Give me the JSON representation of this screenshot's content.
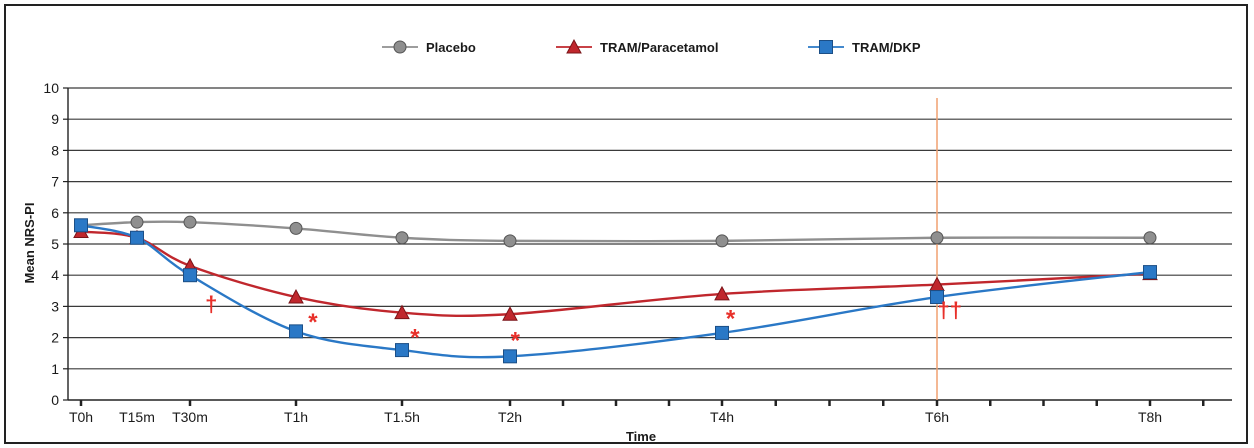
{
  "chart_data": {
    "type": "line",
    "xlabel": "Time",
    "ylabel": "Mean NRS-PI",
    "ylim": [
      0,
      10
    ],
    "yticks": [
      0,
      1,
      2,
      3,
      4,
      5,
      6,
      7,
      8,
      9,
      10
    ],
    "grid": "horizontal",
    "legend_position": "top-center",
    "categories": [
      "T0h",
      "T15m",
      "T30m",
      "T1h",
      "T1.5h",
      "T2h",
      "T4h",
      "T6h",
      "T8h"
    ],
    "x_hours": [
      0,
      0.25,
      0.5,
      1,
      1.5,
      2,
      4,
      6,
      8
    ],
    "minor_ticks_every_hours": 0.5,
    "reference_line": {
      "x_hours": 6,
      "color": "#f0a070"
    },
    "series": [
      {
        "name": "Placebo",
        "marker": "circle",
        "color": "#8f8f8f",
        "values": [
          5.6,
          5.7,
          5.7,
          5.5,
          5.2,
          5.1,
          5.1,
          5.2,
          5.2
        ]
      },
      {
        "name": "TRAM/Paracetamol",
        "marker": "triangle",
        "color": "#c0272d",
        "values": [
          5.4,
          5.2,
          4.3,
          3.3,
          2.8,
          2.75,
          3.4,
          3.7,
          4.05
        ]
      },
      {
        "name": "TRAM/DKP",
        "marker": "square",
        "color": "#2a78c6",
        "values": [
          5.6,
          5.2,
          4.0,
          2.2,
          1.6,
          1.4,
          2.15,
          3.3,
          4.1
        ]
      }
    ],
    "annotations": [
      {
        "text": "†",
        "x_hours": 0.6,
        "y": 3.1
      },
      {
        "text": "*",
        "x_hours": 1.08,
        "y": 2.7
      },
      {
        "text": "*",
        "x_hours": 1.56,
        "y": 2.2
      },
      {
        "text": "*",
        "x_hours": 2.05,
        "y": 2.1
      },
      {
        "text": "*",
        "x_hours": 4.08,
        "y": 2.8
      },
      {
        "text": "††",
        "x_hours": 6.12,
        "y": 2.9
      }
    ],
    "annotation_color": "#e8302a"
  }
}
